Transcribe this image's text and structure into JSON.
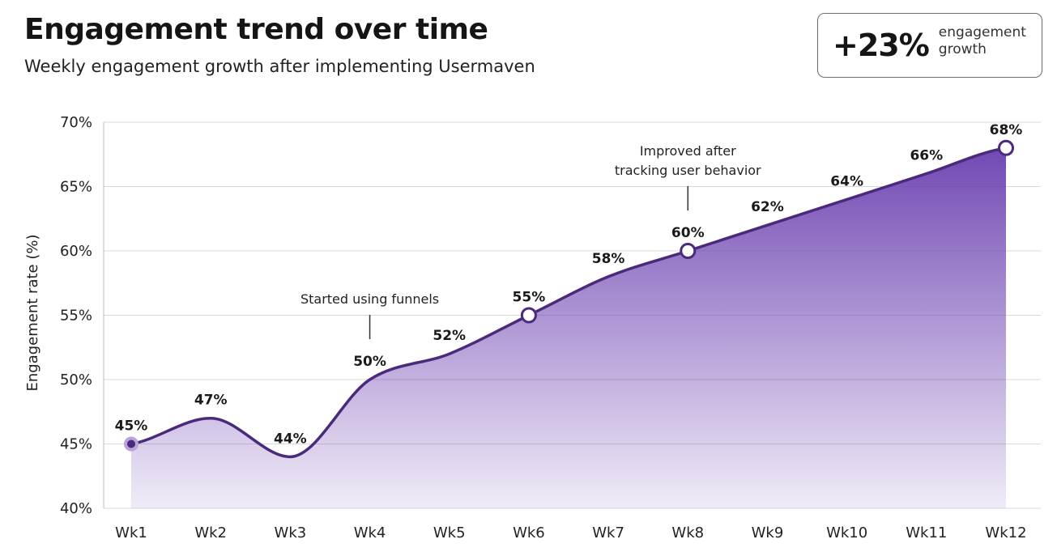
{
  "header": {
    "title": "Engagement trend over time",
    "subtitle": "Weekly engagement growth after implementing Usermaven"
  },
  "kpi": {
    "value": "+23%",
    "label_line1": "engagement",
    "label_line2": "growth"
  },
  "colors": {
    "line": "#4a2a7a",
    "area_top": "#6a3fb0",
    "area_bottom": "#ffffff",
    "grid": "#d9d9d9",
    "marker_fill": "#ffffff"
  },
  "chart_data": {
    "type": "area",
    "title": "Engagement trend over time",
    "subtitle": "Weekly engagement growth after implementing Usermaven",
    "xlabel": "",
    "ylabel": "Engagement rate (%)",
    "ylim": [
      40,
      70
    ],
    "yticks": [
      40,
      45,
      50,
      55,
      60,
      65,
      70
    ],
    "ytick_labels": [
      "40%",
      "45%",
      "50%",
      "55%",
      "60%",
      "65%",
      "70%"
    ],
    "grid": true,
    "categories": [
      "Wk1",
      "Wk2",
      "Wk3",
      "Wk4",
      "Wk5",
      "Wk6",
      "Wk7",
      "Wk8",
      "Wk9",
      "Wk10",
      "Wk11",
      "Wk12"
    ],
    "values": [
      45,
      47,
      44,
      50,
      52,
      55,
      58,
      60,
      62,
      64,
      66,
      68
    ],
    "data_labels": [
      "45%",
      "47%",
      "44%",
      "50%",
      "52%",
      "55%",
      "58%",
      "60%",
      "62%",
      "64%",
      "66%",
      "68%"
    ],
    "markers": [
      0,
      5,
      7,
      11
    ],
    "annotations": [
      {
        "lines": [
          "Started using funnels"
        ],
        "index": 3
      },
      {
        "lines": [
          "Improved after",
          "tracking user behavior"
        ],
        "index": 7
      }
    ]
  }
}
